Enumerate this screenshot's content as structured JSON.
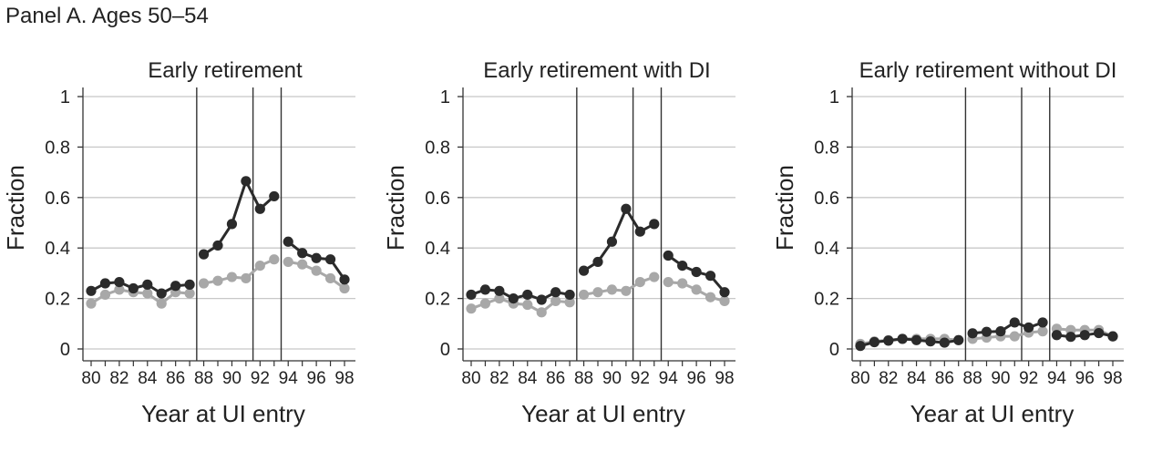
{
  "panel_title": "Panel A. Ages 50–54",
  "colors": {
    "dark_series": "#2b2b2b",
    "light_series": "#a8a8a8",
    "gridline": "#c8c8c8",
    "vline": "#333333",
    "axis": "#333333"
  },
  "chart_data": [
    {
      "type": "line",
      "title": "Early retirement",
      "xlabel": "Year at UI entry",
      "ylabel": "Fraction",
      "xlim": [
        79.5,
        98.5
      ],
      "ylim": [
        -0.05,
        1.05
      ],
      "x_ticks": [
        80,
        82,
        84,
        86,
        88,
        90,
        92,
        94,
        96,
        98
      ],
      "x_tick_labels": [
        "80",
        "82",
        "84",
        "86",
        "88",
        "90",
        "92",
        "94",
        "96",
        "98"
      ],
      "y_ticks": [
        0,
        0.2,
        0.4,
        0.6,
        0.8,
        1
      ],
      "y_tick_labels": [
        "0",
        "0.2",
        "0.4",
        "0.6",
        "0.8",
        "1"
      ],
      "grid": "horizontal",
      "vertical_lines": [
        87.5,
        91.5,
        93.5
      ],
      "series": [
        {
          "style": "light",
          "segments": [
            {
              "x": [
                80,
                81,
                82,
                83,
                84,
                85,
                86,
                87
              ],
              "y": [
                0.18,
                0.215,
                0.235,
                0.225,
                0.22,
                0.18,
                0.225,
                0.22
              ]
            },
            {
              "x": [
                88,
                89,
                90,
                91,
                92,
                93
              ],
              "y": [
                0.26,
                0.27,
                0.285,
                0.28,
                0.33,
                0.355
              ]
            },
            {
              "x": [
                94,
                95,
                96,
                97,
                98
              ],
              "y": [
                0.345,
                0.335,
                0.31,
                0.28,
                0.24
              ]
            }
          ]
        },
        {
          "style": "dark",
          "segments": [
            {
              "x": [
                80,
                81,
                82,
                83,
                84,
                85,
                86,
                87
              ],
              "y": [
                0.23,
                0.26,
                0.265,
                0.24,
                0.255,
                0.22,
                0.25,
                0.255
              ]
            },
            {
              "x": [
                88,
                89,
                90,
                91,
                92,
                93
              ],
              "y": [
                0.375,
                0.41,
                0.495,
                0.665,
                0.555,
                0.605
              ]
            },
            {
              "x": [
                94,
                95,
                96,
                97,
                98
              ],
              "y": [
                0.425,
                0.38,
                0.36,
                0.355,
                0.275
              ]
            }
          ]
        }
      ]
    },
    {
      "type": "line",
      "title": "Early retirement with DI",
      "xlabel": "Year at UI entry",
      "ylabel": "Fraction",
      "xlim": [
        79.5,
        98.5
      ],
      "ylim": [
        -0.05,
        1.05
      ],
      "x_ticks": [
        80,
        82,
        84,
        86,
        88,
        90,
        92,
        94,
        96,
        98
      ],
      "x_tick_labels": [
        "80",
        "82",
        "84",
        "86",
        "88",
        "90",
        "92",
        "94",
        "96",
        "98"
      ],
      "y_ticks": [
        0,
        0.2,
        0.4,
        0.6,
        0.8,
        1
      ],
      "y_tick_labels": [
        "0",
        "0.2",
        "0.4",
        "0.6",
        "0.8",
        "1"
      ],
      "grid": "horizontal",
      "vertical_lines": [
        87.5,
        91.5,
        93.5
      ],
      "series": [
        {
          "style": "light",
          "segments": [
            {
              "x": [
                80,
                81,
                82,
                83,
                84,
                85,
                86,
                87
              ],
              "y": [
                0.16,
                0.18,
                0.2,
                0.18,
                0.175,
                0.145,
                0.19,
                0.185
              ]
            },
            {
              "x": [
                88,
                89,
                90,
                91,
                92,
                93
              ],
              "y": [
                0.215,
                0.225,
                0.235,
                0.23,
                0.265,
                0.285
              ]
            },
            {
              "x": [
                94,
                95,
                96,
                97,
                98
              ],
              "y": [
                0.265,
                0.26,
                0.235,
                0.205,
                0.19
              ]
            }
          ]
        },
        {
          "style": "dark",
          "segments": [
            {
              "x": [
                80,
                81,
                82,
                83,
                84,
                85,
                86,
                87
              ],
              "y": [
                0.215,
                0.235,
                0.23,
                0.2,
                0.215,
                0.195,
                0.225,
                0.215
              ]
            },
            {
              "x": [
                88,
                89,
                90,
                91,
                92,
                93
              ],
              "y": [
                0.31,
                0.345,
                0.425,
                0.555,
                0.465,
                0.495
              ]
            },
            {
              "x": [
                94,
                95,
                96,
                97,
                98
              ],
              "y": [
                0.37,
                0.33,
                0.305,
                0.29,
                0.225
              ]
            }
          ]
        }
      ]
    },
    {
      "type": "line",
      "title": "Early retirement without DI",
      "xlabel": "Year at UI entry",
      "ylabel": "Fraction",
      "xlim": [
        79.5,
        98.5
      ],
      "ylim": [
        -0.05,
        1.05
      ],
      "x_ticks": [
        80,
        82,
        84,
        86,
        88,
        90,
        92,
        94,
        96,
        98
      ],
      "x_tick_labels": [
        "80",
        "82",
        "84",
        "86",
        "88",
        "90",
        "92",
        "94",
        "96",
        "98"
      ],
      "y_ticks": [
        0,
        0.2,
        0.4,
        0.6,
        0.8,
        1
      ],
      "y_tick_labels": [
        "0",
        "0.2",
        "0.4",
        "0.6",
        "0.8",
        "1"
      ],
      "grid": "horizontal",
      "vertical_lines": [
        87.5,
        91.5,
        93.5
      ],
      "series": [
        {
          "style": "light",
          "segments": [
            {
              "x": [
                80,
                81,
                82,
                83,
                84,
                85,
                86,
                87
              ],
              "y": [
                0.02,
                0.03,
                0.035,
                0.04,
                0.04,
                0.04,
                0.04,
                0.035
              ]
            },
            {
              "x": [
                88,
                89,
                90,
                91,
                92,
                93
              ],
              "y": [
                0.04,
                0.045,
                0.05,
                0.05,
                0.065,
                0.07
              ]
            },
            {
              "x": [
                94,
                95,
                96,
                97,
                98
              ],
              "y": [
                0.08,
                0.075,
                0.075,
                0.075,
                0.05
              ]
            }
          ]
        },
        {
          "style": "dark",
          "segments": [
            {
              "x": [
                80,
                81,
                82,
                83,
                84,
                85,
                86,
                87
              ],
              "y": [
                0.012,
                0.027,
                0.033,
                0.04,
                0.035,
                0.03,
                0.025,
                0.035
              ]
            },
            {
              "x": [
                88,
                89,
                90,
                91,
                92,
                93
              ],
              "y": [
                0.062,
                0.068,
                0.07,
                0.105,
                0.085,
                0.105
              ]
            },
            {
              "x": [
                94,
                95,
                96,
                97,
                98
              ],
              "y": [
                0.055,
                0.048,
                0.055,
                0.063,
                0.05
              ]
            }
          ]
        }
      ]
    }
  ]
}
